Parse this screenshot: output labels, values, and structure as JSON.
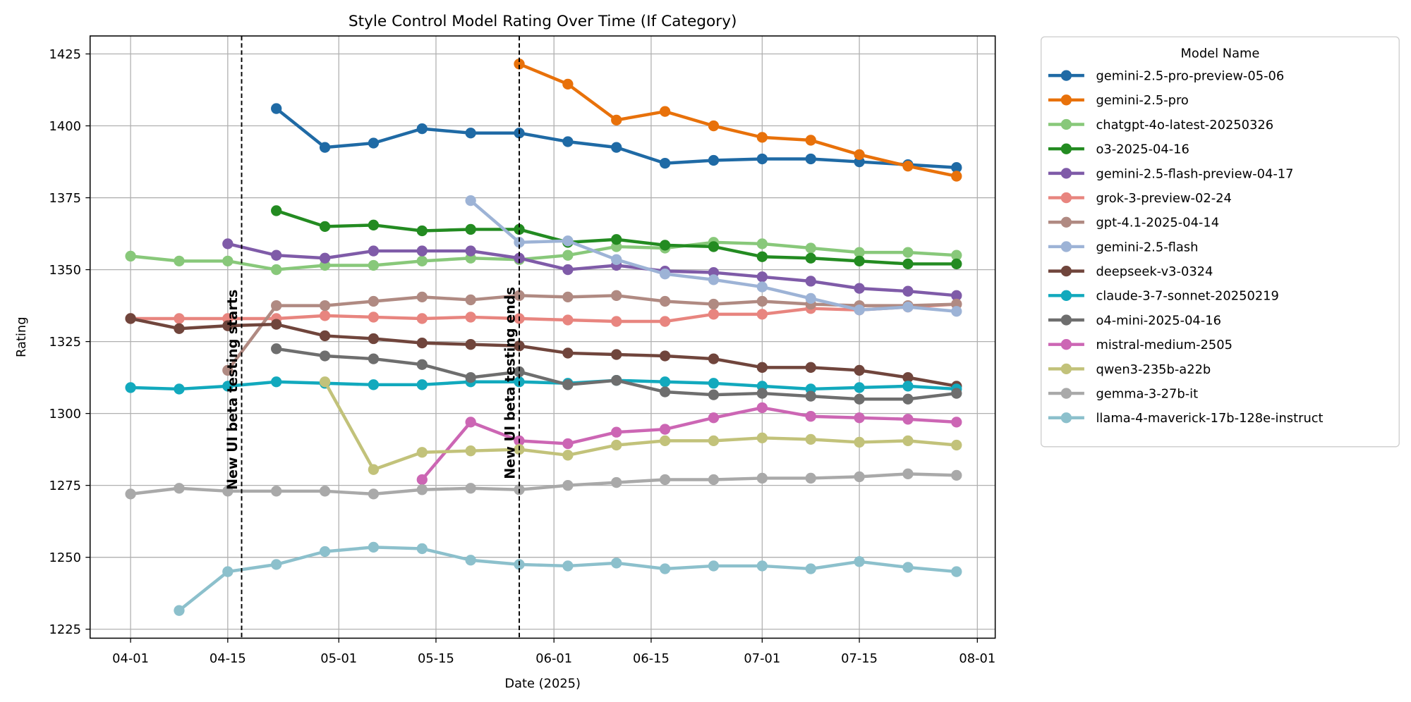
{
  "chart_data": {
    "type": "line",
    "title": "Style Control Model Rating Over Time (If Category)",
    "xlabel": "Date (2025)",
    "ylabel": "Rating",
    "xlim": [
      "2025-03-26",
      "2025-08-04"
    ],
    "ylim": [
      1222,
      1430
    ],
    "grid": true,
    "legend": {
      "title": "Model Name",
      "placement": "outside-right"
    },
    "x_ticks": [
      {
        "date": "2025-04-01",
        "label": "04-01"
      },
      {
        "date": "2025-04-15",
        "label": "04-15"
      },
      {
        "date": "2025-05-01",
        "label": "05-01"
      },
      {
        "date": "2025-05-15",
        "label": "05-15"
      },
      {
        "date": "2025-06-01",
        "label": "06-01"
      },
      {
        "date": "2025-06-15",
        "label": "06-15"
      },
      {
        "date": "2025-07-01",
        "label": "07-01"
      },
      {
        "date": "2025-07-15",
        "label": "07-15"
      },
      {
        "date": "2025-08-01",
        "label": "08-01"
      }
    ],
    "y_ticks": [
      1225,
      1250,
      1275,
      1300,
      1325,
      1350,
      1375,
      1400,
      1425
    ],
    "x": [
      "2025-04-01",
      "2025-04-08",
      "2025-04-15",
      "2025-04-22",
      "2025-04-29",
      "2025-05-06",
      "2025-05-13",
      "2025-05-20",
      "2025-05-27",
      "2025-06-03",
      "2025-06-10",
      "2025-06-17",
      "2025-06-24",
      "2025-07-01",
      "2025-07-08",
      "2025-07-15",
      "2025-07-22",
      "2025-07-29"
    ],
    "annotations": [
      {
        "date": "2025-04-17",
        "text": "New UI beta testing starts"
      },
      {
        "date": "2025-05-27",
        "text": "New UI beta testing ends"
      }
    ],
    "series": [
      {
        "name": "gemini-2.5-pro-preview-05-06",
        "color": "#1f6aa5",
        "values": [
          null,
          null,
          null,
          1406,
          1392.5,
          1394,
          1399,
          1397.5,
          1397.5,
          1394.5,
          1392.5,
          1387,
          1388,
          1388.5,
          1388.5,
          1387.5,
          1386.5,
          1385.5
        ]
      },
      {
        "name": "gemini-2.5-pro",
        "color": "#e8710a",
        "values": [
          null,
          null,
          null,
          null,
          null,
          null,
          null,
          null,
          1421.5,
          1414.5,
          1402,
          1405,
          1400,
          1396,
          1395,
          1390,
          1386,
          1382.5
        ]
      },
      {
        "name": "chatgpt-4o-latest-20250326",
        "color": "#88c87a",
        "values": [
          1354.7,
          1353,
          1353,
          1350,
          1351.5,
          1351.5,
          1353,
          1354,
          1353.5,
          1355,
          1358,
          1357.5,
          1359.5,
          1359,
          1357.5,
          1356,
          1356,
          1355
        ]
      },
      {
        "name": "o3-2025-04-16",
        "color": "#238b21",
        "values": [
          null,
          null,
          null,
          1370.5,
          1365,
          1365.5,
          1363.5,
          1364,
          1364,
          1359.5,
          1360.5,
          1358.5,
          1358,
          1354.5,
          1354,
          1353,
          1352,
          1352
        ]
      },
      {
        "name": "gemini-2.5-flash-preview-04-17",
        "color": "#7f5ba8",
        "values": [
          null,
          null,
          1359,
          1355,
          1354,
          1356.5,
          1356.5,
          1356.5,
          1354,
          1350,
          1351.5,
          1349.5,
          1349,
          1347.5,
          1346,
          1343.5,
          1342.5,
          1341
        ]
      },
      {
        "name": "grok-3-preview-02-24",
        "color": "#e8857f",
        "values": [
          1333,
          1333,
          1333,
          1333,
          1334,
          1333.5,
          1333,
          1333.5,
          1333,
          1332.5,
          1332,
          1332,
          1334.5,
          1334.5,
          1336.5,
          1336,
          1337,
          1338
        ]
      },
      {
        "name": "gpt-4.1-2025-04-14",
        "color": "#b08a82",
        "values": [
          null,
          null,
          1315,
          1337.5,
          1337.5,
          1339,
          1340.5,
          1339.5,
          1341,
          1340.5,
          1341,
          1339,
          1338,
          1339,
          1338,
          1337.5,
          1337.5,
          1338
        ]
      },
      {
        "name": "gemini-2.5-flash",
        "color": "#9db3d6",
        "values": [
          null,
          null,
          null,
          null,
          null,
          null,
          null,
          1374,
          1359.5,
          1360,
          1353.5,
          1348.5,
          1346.5,
          1344,
          1340,
          1336,
          1337,
          1335.5
        ]
      },
      {
        "name": "deepseek-v3-0324",
        "color": "#70453c",
        "values": [
          1333,
          1329.5,
          1330.5,
          1331,
          1327,
          1326,
          1324.5,
          1324,
          1323.5,
          1321,
          1320.5,
          1320,
          1319,
          1316,
          1316,
          1315,
          1312.5,
          1309.5
        ]
      },
      {
        "name": "claude-3-7-sonnet-20250219",
        "color": "#12a9bd",
        "values": [
          1309,
          1308.5,
          1309.5,
          1311,
          1310.5,
          1310,
          1310,
          1311,
          1311,
          1310.5,
          1311.5,
          1311,
          1310.5,
          1309.5,
          1308.5,
          1309,
          1309.5,
          1308.5
        ]
      },
      {
        "name": "o4-mini-2025-04-16",
        "color": "#6e6e6e",
        "values": [
          null,
          null,
          null,
          1322.5,
          1320,
          1319,
          1317,
          1312.5,
          1314.5,
          1310,
          1311.5,
          1307.5,
          1306.5,
          1307,
          1306,
          1305,
          1305,
          1307
        ]
      },
      {
        "name": "mistral-medium-2505",
        "color": "#cc66b4",
        "values": [
          null,
          null,
          null,
          null,
          null,
          null,
          1277,
          1297,
          1290.5,
          1289.5,
          1293.5,
          1294.5,
          1298.5,
          1302,
          1299,
          1298.5,
          1298,
          1297
        ]
      },
      {
        "name": "qwen3-235b-a22b",
        "color": "#c2c27a",
        "values": [
          null,
          null,
          null,
          null,
          1311,
          1280.5,
          1286.5,
          1287,
          1287.5,
          1285.5,
          1289,
          1290.5,
          1290.5,
          1291.5,
          1291,
          1290,
          1290.5,
          1289
        ]
      },
      {
        "name": "gemma-3-27b-it",
        "color": "#a9a9a9",
        "values": [
          1272,
          1274,
          1273,
          1273,
          1273,
          1272,
          1273.5,
          1274,
          1273.5,
          1275,
          1276,
          1277,
          1277,
          1277.5,
          1277.5,
          1278,
          1279,
          1278.5
        ]
      },
      {
        "name": "llama-4-maverick-17b-128e-instruct",
        "color": "#8cc0cc",
        "values": [
          null,
          1231.5,
          1245,
          1247.5,
          1252,
          1253.5,
          1253,
          1249,
          1247.5,
          1247,
          1248,
          1246,
          1247,
          1247,
          1246,
          1248.5,
          1246.5,
          1245
        ]
      }
    ]
  }
}
